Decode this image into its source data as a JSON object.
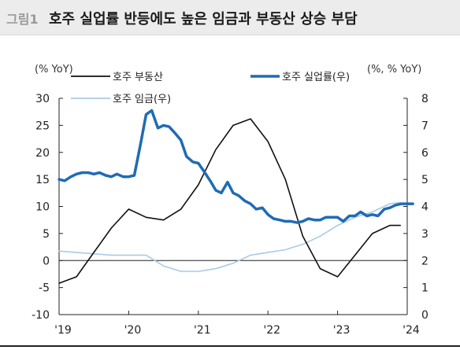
{
  "header": {
    "figure_label": "그림1",
    "title": "호주 실업률 반등에도 높은 임금과 부동산 상승 부담"
  },
  "chart_data": {
    "type": "line",
    "left_unit": "(% YoY)",
    "right_unit": "(%, % YoY)",
    "left_axis": {
      "ylim": [
        -10,
        30
      ],
      "ticks": [
        "-10",
        "-5",
        "0",
        "5",
        "10",
        "15",
        "20",
        "25",
        "30"
      ]
    },
    "right_axis": {
      "ylim": [
        0,
        8
      ],
      "ticks": [
        "0",
        "1",
        "2",
        "3",
        "4",
        "5",
        "6",
        "7",
        "8"
      ]
    },
    "x_axis": {
      "xlim": [
        2019.0,
        2024.0
      ],
      "ticks": [
        "'19",
        "'20",
        "'21",
        "'22",
        "'23",
        "'24"
      ]
    },
    "legend_placement": "top",
    "series": [
      {
        "name": "호주 부동산",
        "axis": "left",
        "color": "#111111",
        "x": [
          2019.0,
          2019.25,
          2019.5,
          2019.75,
          2020.0,
          2020.25,
          2020.5,
          2020.75,
          2021.0,
          2021.25,
          2021.5,
          2021.75,
          2022.0,
          2022.25,
          2022.5,
          2022.75,
          2023.0,
          2023.25,
          2023.5,
          2023.75,
          2023.9
        ],
        "values": [
          -4.2,
          -3.0,
          1.5,
          6.0,
          9.5,
          8.0,
          7.5,
          9.5,
          14.0,
          20.5,
          25.0,
          26.2,
          22.0,
          15.0,
          4.5,
          -1.5,
          -3.0,
          1.0,
          5.0,
          6.5,
          6.5
        ]
      },
      {
        "name": "호주 실업률(우)",
        "axis": "right",
        "color": "#1f6bb5",
        "x": [
          2019.0,
          2019.08,
          2019.17,
          2019.25,
          2019.33,
          2019.42,
          2019.5,
          2019.58,
          2019.67,
          2019.75,
          2019.83,
          2019.92,
          2020.0,
          2020.08,
          2020.17,
          2020.25,
          2020.33,
          2020.42,
          2020.5,
          2020.58,
          2020.67,
          2020.75,
          2020.83,
          2020.92,
          2021.0,
          2021.08,
          2021.17,
          2021.25,
          2021.33,
          2021.42,
          2021.5,
          2021.58,
          2021.67,
          2021.75,
          2021.83,
          2021.92,
          2022.0,
          2022.08,
          2022.17,
          2022.25,
          2022.33,
          2022.42,
          2022.5,
          2022.58,
          2022.67,
          2022.75,
          2022.83,
          2022.92,
          2023.0,
          2023.08,
          2023.17,
          2023.25,
          2023.33,
          2023.42,
          2023.5,
          2023.58,
          2023.67,
          2023.75,
          2023.83,
          2023.92,
          2024.0,
          2024.08
        ],
        "values": [
          5.0,
          4.95,
          5.1,
          5.2,
          5.25,
          5.25,
          5.2,
          5.25,
          5.15,
          5.1,
          5.2,
          5.1,
          5.1,
          5.15,
          6.3,
          7.4,
          7.55,
          6.9,
          7.0,
          6.95,
          6.7,
          6.45,
          5.85,
          5.65,
          5.6,
          5.3,
          4.95,
          4.6,
          4.5,
          4.9,
          4.5,
          4.4,
          4.2,
          4.1,
          3.9,
          3.95,
          3.7,
          3.55,
          3.5,
          3.45,
          3.45,
          3.4,
          3.45,
          3.55,
          3.5,
          3.5,
          3.6,
          3.6,
          3.6,
          3.45,
          3.65,
          3.65,
          3.8,
          3.65,
          3.7,
          3.65,
          3.9,
          3.95,
          4.05,
          4.1,
          4.1,
          4.1
        ],
        "line_width": 3.5
      },
      {
        "name": "호주 임금(우)",
        "axis": "right",
        "color": "#a9cbe6",
        "x": [
          2019.0,
          2019.25,
          2019.5,
          2019.75,
          2020.0,
          2020.25,
          2020.5,
          2020.75,
          2021.0,
          2021.25,
          2021.5,
          2021.75,
          2022.0,
          2022.25,
          2022.5,
          2022.75,
          2023.0,
          2023.25,
          2023.5,
          2023.75,
          2023.9
        ],
        "values": [
          2.35,
          2.3,
          2.25,
          2.2,
          2.2,
          2.2,
          1.8,
          1.6,
          1.6,
          1.7,
          1.9,
          2.2,
          2.3,
          2.4,
          2.6,
          2.9,
          3.3,
          3.6,
          3.8,
          4.1,
          4.15
        ]
      }
    ]
  }
}
